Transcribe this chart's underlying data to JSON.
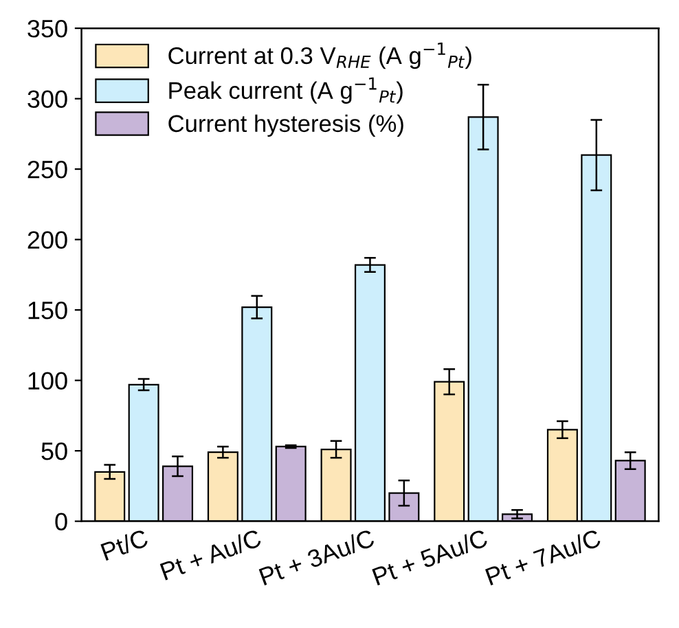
{
  "chart_data": {
    "type": "bar",
    "categories": [
      "Pt/C",
      "Pt + Au/C",
      "Pt + 3Au/C",
      "Pt + 5Au/C",
      "Pt + 7Au/C"
    ],
    "series": [
      {
        "name": "Current at 0.3 V$_{RHE}$ (A g$^{−1}$$_{Pt}$)",
        "color": "#fde6b8",
        "values": [
          35,
          49,
          51,
          99,
          65
        ],
        "errors": [
          5,
          4,
          6,
          9,
          6
        ]
      },
      {
        "name": "Peak current (A g$^{−1}$$_{Pt}$)",
        "color": "#cdeefc",
        "values": [
          97,
          152,
          182,
          287,
          260
        ],
        "errors": [
          4,
          8,
          5,
          23,
          25
        ]
      },
      {
        "name": "Current hysteresis (%)",
        "color": "#c7b5d8",
        "values": [
          39,
          53,
          20,
          5,
          43
        ],
        "errors": [
          7,
          1,
          9,
          3,
          6
        ]
      }
    ],
    "ylim": [
      0,
      350
    ],
    "yticks": [
      0,
      50,
      100,
      150,
      200,
      250,
      300,
      350
    ],
    "legend": "top left",
    "grid": false
  }
}
